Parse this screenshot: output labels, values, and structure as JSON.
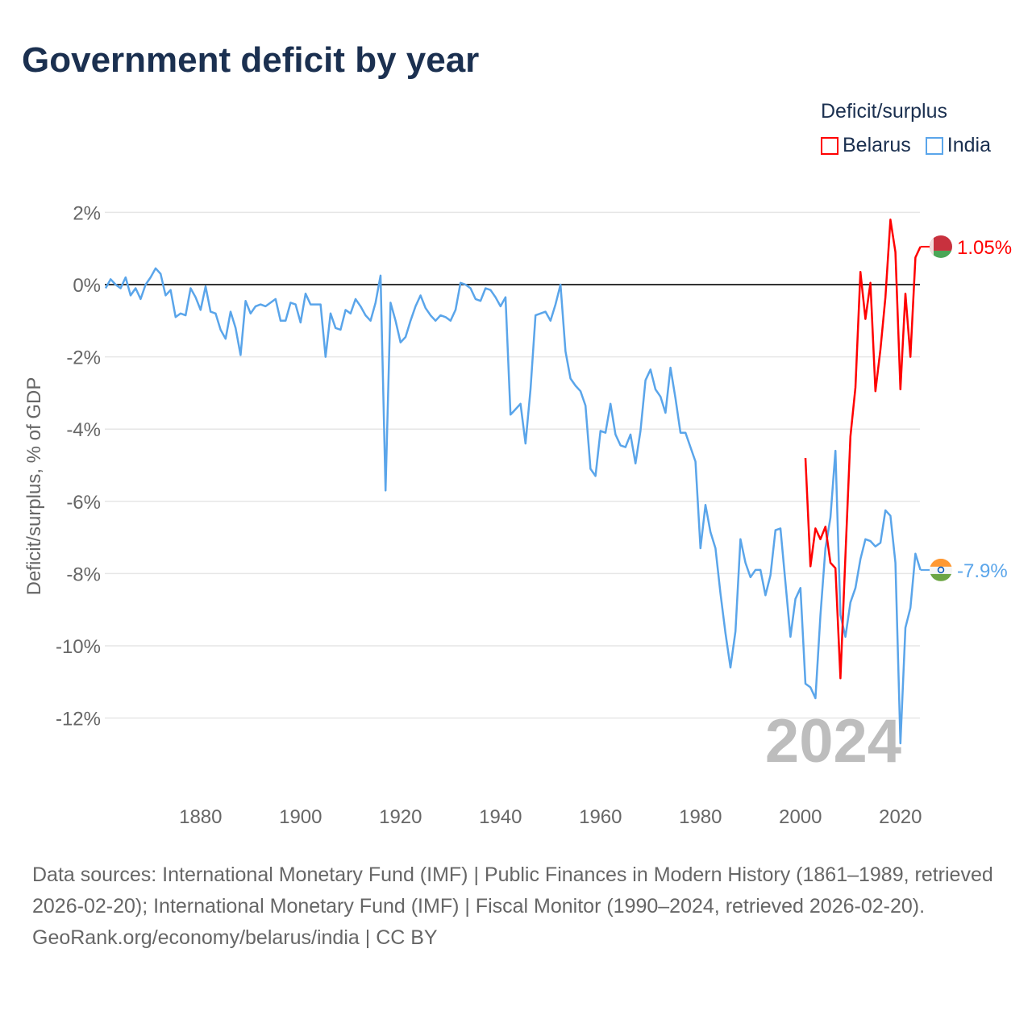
{
  "title": "Government deficit by year",
  "legend": {
    "title": "Deficit/surplus",
    "items": [
      {
        "name": "Belarus",
        "color": "#ff0000"
      },
      {
        "name": "India",
        "color": "#5aa5ea"
      }
    ]
  },
  "watermark_year": "2024",
  "chart_data": {
    "type": "line",
    "title": "Government deficit by year",
    "xlabel": "",
    "ylabel": "Deficit/surplus, % of GDP",
    "xlim": [
      1861,
      2024
    ],
    "ylim": [
      -13,
      2
    ],
    "xticks": [
      1880,
      1900,
      1920,
      1940,
      1960,
      1980,
      2000,
      2020
    ],
    "xtick_labels": [
      "1880",
      "1900",
      "1920",
      "1940",
      "1960",
      "1980",
      "2000",
      "2020"
    ],
    "yticks": [
      2,
      0,
      -2,
      -4,
      -6,
      -8,
      -10,
      -12
    ],
    "ytick_labels": [
      "2%",
      "0%",
      "-2%",
      "-4%",
      "-6%",
      "-8%",
      "-10%",
      "-12%"
    ],
    "grid": true,
    "legend_position": "top-right",
    "series": [
      {
        "name": "India",
        "color": "#5aa5ea",
        "start_year": 1861,
        "end_label": "-7.9%",
        "values": [
          -0.1,
          0.15,
          0,
          -0.1,
          0.2,
          -0.3,
          -0.1,
          -0.4,
          0,
          0.2,
          0.45,
          0.3,
          -0.3,
          -0.15,
          -0.9,
          -0.8,
          -0.85,
          -0.1,
          -0.35,
          -0.7,
          -0.05,
          -0.75,
          -0.8,
          -1.25,
          -1.5,
          -0.75,
          -1.2,
          -1.95,
          -0.45,
          -0.8,
          -0.6,
          -0.55,
          -0.6,
          -0.5,
          -0.4,
          -1.0,
          -1.0,
          -0.5,
          -0.55,
          -1.05,
          -0.25,
          -0.55,
          -0.55,
          -0.55,
          -2.0,
          -0.8,
          -1.2,
          -1.25,
          -0.7,
          -0.8,
          -0.4,
          -0.6,
          -0.85,
          -1.0,
          -0.5,
          0.25,
          -5.7,
          -0.5,
          -1.0,
          -1.6,
          -1.45,
          -1.0,
          -0.6,
          -0.3,
          -0.65,
          -0.85,
          -1.0,
          -0.85,
          -0.9,
          -1.0,
          -0.7,
          0.05,
          0,
          -0.1,
          -0.4,
          -0.45,
          -0.1,
          -0.15,
          -0.35,
          -0.6,
          -0.35,
          -3.6,
          -3.45,
          -3.3,
          -4.4,
          -2.9,
          -0.85,
          -0.8,
          -0.75,
          -1.0,
          -0.55,
          0,
          -1.85,
          -2.6,
          -2.8,
          -2.95,
          -3.35,
          -5.1,
          -5.3,
          -4.05,
          -4.1,
          -3.3,
          -4.15,
          -4.45,
          -4.5,
          -4.15,
          -4.95,
          -4.05,
          -2.65,
          -2.35,
          -2.9,
          -3.1,
          -3.55,
          -2.3,
          -3.15,
          -4.1,
          -4.1,
          -4.5,
          -4.9,
          -7.3,
          -6.1,
          -6.85,
          -7.3,
          -8.55,
          -9.65,
          -10.6,
          -9.6,
          -7.05,
          -7.7,
          -8.1,
          -7.9,
          -7.9,
          -8.6,
          -8.05,
          -6.8,
          -6.75,
          -8.25,
          -9.75,
          -8.7,
          -8.4,
          -11.05,
          -11.15,
          -11.45,
          -9.15,
          -7.3,
          -6.45,
          -4.6,
          -9.15,
          -9.75,
          -8.8,
          -8.4,
          -7.6,
          -7.05,
          -7.1,
          -7.25,
          -7.15,
          -6.25,
          -6.4,
          -7.7,
          -12.7,
          -9.5,
          -8.95,
          -7.45,
          -7.9
        ]
      },
      {
        "name": "Belarus",
        "color": "#ff0000",
        "start_year": 2001,
        "end_label": "1.05%",
        "values": [
          -4.8,
          -7.8,
          -6.75,
          -7.05,
          -6.7,
          -7.7,
          -7.85,
          -10.9,
          -7.5,
          -4.2,
          -2.85,
          0.35,
          -0.95,
          0.05,
          -2.95,
          -1.8,
          -0.35,
          1.8,
          0.9,
          -2.9,
          -0.25,
          -2.0,
          0.75,
          1.05
        ]
      }
    ]
  },
  "footer": {
    "sources": "Data sources: International Monetary Fund (IMF) | Public Finances in Modern History (1861–1989, retrieved 2026-02-20); International Monetary Fund (IMF) | Fiscal Monitor (1990–2024, retrieved 2026-02-20).",
    "link": "GeoRank.org/economy/belarus/india",
    "license": "CC BY"
  }
}
